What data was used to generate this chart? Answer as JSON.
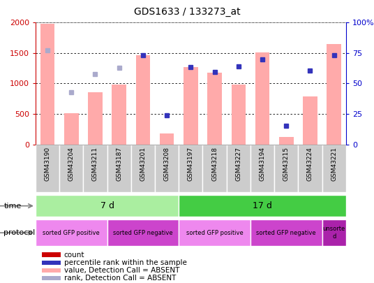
{
  "title": "GDS1633 / 133273_at",
  "samples": [
    "GSM43190",
    "GSM43204",
    "GSM43211",
    "GSM43187",
    "GSM43201",
    "GSM43208",
    "GSM43197",
    "GSM43218",
    "GSM43227",
    "GSM43194",
    "GSM43215",
    "GSM43224",
    "GSM43221"
  ],
  "bar_values": [
    1980,
    510,
    860,
    980,
    1470,
    175,
    1270,
    1175,
    985,
    1510,
    120,
    790,
    1650
  ],
  "dot_values": [
    1540,
    860,
    1150,
    1260,
    1470,
    475,
    1270,
    1185,
    1280,
    1395,
    305,
    1210,
    1470
  ],
  "bar_absent": [
    true,
    true,
    true,
    true,
    true,
    true,
    true,
    true,
    true,
    true,
    true,
    true,
    true
  ],
  "dot_absent": [
    true,
    true,
    true,
    true,
    false,
    false,
    false,
    false,
    false,
    false,
    false,
    false,
    false
  ],
  "ylim_left": [
    0,
    2000
  ],
  "ylim_right": [
    0,
    100
  ],
  "yticks_left": [
    0,
    500,
    1000,
    1500,
    2000
  ],
  "yticks_right": [
    0,
    25,
    50,
    75,
    100
  ],
  "yticklabels_left": [
    "0",
    "500",
    "1000",
    "1500",
    "2000"
  ],
  "yticklabels_right": [
    "0",
    "25",
    "50",
    "75",
    "100%"
  ],
  "time_groups": [
    {
      "label": "7 d",
      "start": 0,
      "end": 5,
      "color": "#aaeea0"
    },
    {
      "label": "17 d",
      "start": 6,
      "end": 12,
      "color": "#44cc44"
    }
  ],
  "protocol_groups": [
    {
      "label": "sorted GFP positive",
      "start": 0,
      "end": 2,
      "color": "#ee88ee"
    },
    {
      "label": "sorted GFP negative",
      "start": 3,
      "end": 5,
      "color": "#cc44cc"
    },
    {
      "label": "sorted GFP positive",
      "start": 6,
      "end": 8,
      "color": "#ee88ee"
    },
    {
      "label": "sorted GFP negative",
      "start": 9,
      "end": 11,
      "color": "#cc44cc"
    },
    {
      "label": "unsorte\nd",
      "start": 12,
      "end": 12,
      "color": "#aa22aa"
    }
  ],
  "bar_color_present": "#cc0000",
  "bar_color_absent": "#ffaaaa",
  "dot_color_present": "#3333bb",
  "dot_color_absent": "#aaaacc",
  "left_axis_color": "#cc0000",
  "right_axis_color": "#0000cc",
  "legend_items": [
    {
      "color": "#cc0000",
      "label": "count"
    },
    {
      "color": "#3333bb",
      "label": "percentile rank within the sample"
    },
    {
      "color": "#ffaaaa",
      "label": "value, Detection Call = ABSENT"
    },
    {
      "color": "#aaaacc",
      "label": "rank, Detection Call = ABSENT"
    }
  ]
}
